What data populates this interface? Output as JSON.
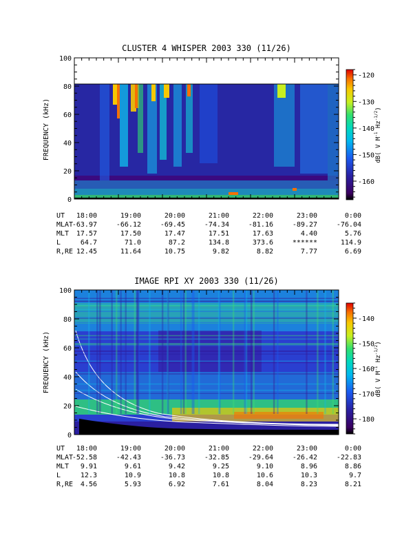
{
  "chart_data": [
    {
      "type": "heatmap",
      "title": "CLUSTER 4 WHISPER 2003 330 (11/26)",
      "ylabel": "FREQUENCY (kHz)",
      "ylim": [
        0,
        100
      ],
      "yticks": [
        "0",
        "20",
        "40",
        "60",
        "80",
        "100"
      ],
      "x_ticks": [
        "18:00",
        "19:00",
        "20:00",
        "21:00",
        "22:00",
        "23:00",
        "0:00"
      ],
      "data_top_khz": 80,
      "colorbar": {
        "label_parts": [
          "dB( V M",
          "-1",
          " Hz",
          "-1/2",
          ")"
        ],
        "range": [
          -167,
          -118
        ],
        "ticks": [
          "-120",
          "-130",
          "-140",
          "-150",
          "-160"
        ],
        "tick_values": [
          -120,
          -130,
          -140,
          -150,
          -160
        ]
      },
      "ephemeris": [
        {
          "label": "UT",
          "values": [
            "18:00",
            "19:00",
            "20:00",
            "21:00",
            "22:00",
            "23:00",
            "0:00"
          ]
        },
        {
          "label": "MLAT",
          "values": [
            "-63.97",
            "-66.12",
            "-69.45",
            "-74.34",
            "-81.16",
            "-89.27",
            "-76.04"
          ]
        },
        {
          "label": "MLT",
          "values": [
            "17.57",
            "17.50",
            "17.47",
            "17.51",
            "17.63",
            "4.40",
            "5.76"
          ]
        },
        {
          "label": "L",
          "values": [
            "64.7",
            "71.0",
            "87.2",
            "134.8",
            "373.6",
            "******",
            "114.9"
          ]
        },
        {
          "label": "R,RE",
          "values": [
            "12.45",
            "11.64",
            "10.75",
            "9.82",
            "8.82",
            "7.77",
            "6.69"
          ]
        }
      ]
    },
    {
      "type": "heatmap",
      "title": "IMAGE RPI XY 2003 330 (11/26)",
      "ylabel": "FREQUENCY (kHz)",
      "ylim": [
        0,
        100
      ],
      "yticks": [
        "0",
        "20",
        "40",
        "60",
        "80",
        "100"
      ],
      "x_ticks": [
        "18:00",
        "19:00",
        "20:00",
        "21:00",
        "22:00",
        "23:00",
        "0:00"
      ],
      "colorbar": {
        "label_parts": [
          "dB( V M",
          "-1",
          " Hz",
          "-1/2",
          ")"
        ],
        "range": [
          -186,
          -134
        ],
        "ticks": [
          "-140",
          "-150",
          "-160",
          "-170",
          "-180"
        ],
        "tick_values": [
          -140,
          -150,
          -160,
          -170,
          -180
        ]
      },
      "ephemeris": [
        {
          "label": "UT",
          "values": [
            "18:00",
            "19:00",
            "20:00",
            "21:00",
            "22:00",
            "23:00",
            "0:00"
          ]
        },
        {
          "label": "MLAT",
          "values": [
            "-52.58",
            "-42.43",
            "-36.73",
            "-32.85",
            "-29.64",
            "-26.42",
            "-22.83"
          ]
        },
        {
          "label": "MLT",
          "values": [
            "9.91",
            "9.61",
            "9.42",
            "9.25",
            "9.10",
            "8.96",
            "8.86"
          ]
        },
        {
          "label": "L",
          "values": [
            "12.3",
            "10.9",
            "10.8",
            "10.8",
            "10.6",
            "10.3",
            "9.7"
          ]
        },
        {
          "label": "R,RE",
          "values": [
            "4.56",
            "5.93",
            "6.92",
            "7.61",
            "8.04",
            "8.23",
            "8.21"
          ]
        }
      ]
    }
  ]
}
